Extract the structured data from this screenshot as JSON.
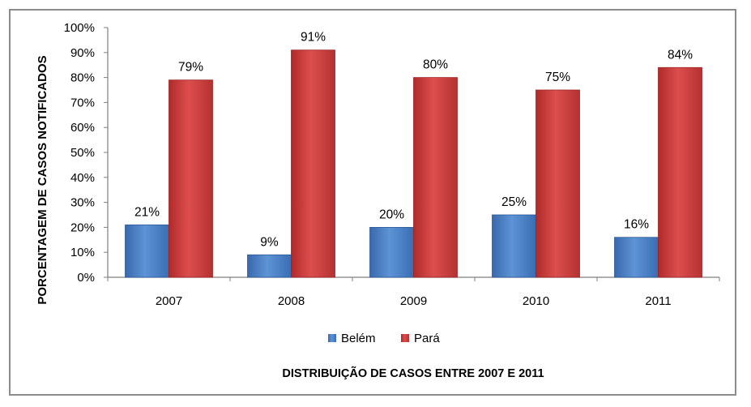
{
  "colors": {
    "belem": "#4a7cc0",
    "para": "#c33a3a",
    "axis": "#7f7f7f",
    "text": "#000000"
  },
  "chart_data": {
    "type": "bar",
    "title": "",
    "xlabel": "DISTRIBUIÇÃO DE CASOS ENTRE 2007 E 2011",
    "ylabel": "PORCENTAGEM DE CASOS NOTIFICADOS",
    "categories": [
      "2007",
      "2008",
      "2009",
      "2010",
      "2011"
    ],
    "series": [
      {
        "name": "Belém",
        "values": [
          21,
          9,
          20,
          25,
          16
        ],
        "labels": [
          "21%",
          "9%",
          "20%",
          "25%",
          "16%"
        ]
      },
      {
        "name": "Pará",
        "values": [
          79,
          91,
          80,
          75,
          84
        ],
        "labels": [
          "79%",
          "91%",
          "80%",
          "75%",
          "84%"
        ]
      }
    ],
    "ylim": [
      0,
      100
    ],
    "yticks": [
      "0%",
      "10%",
      "20%",
      "30%",
      "40%",
      "50%",
      "60%",
      "70%",
      "80%",
      "90%",
      "100%"
    ],
    "grid": false,
    "legend": "bottom"
  }
}
